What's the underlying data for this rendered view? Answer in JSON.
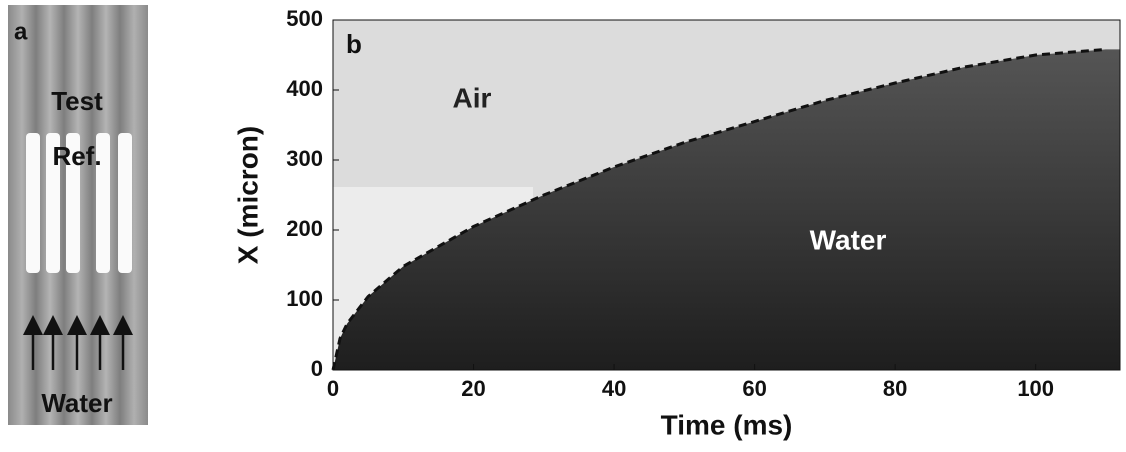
{
  "panel_a": {
    "label": "a",
    "texts": [
      "Test",
      "Ref.",
      "Water"
    ]
  },
  "chart_data": {
    "type": "line",
    "panel_label": "b",
    "x_label": "Time (ms)",
    "y_label": "X (micron)",
    "annotations": [
      "Air",
      "Water"
    ],
    "x": [
      0,
      1,
      2,
      5,
      10,
      20,
      30,
      40,
      50,
      60,
      70,
      80,
      90,
      100,
      110
    ],
    "series": [
      {
        "color": "#111111",
        "values": [
          0,
          45,
          66,
          105,
          148,
          205,
          250,
          290,
          325,
          355,
          385,
          410,
          433,
          450,
          458
        ]
      }
    ],
    "xlim": [
      0,
      112
    ],
    "ylim": [
      0,
      500
    ],
    "xticks": [
      0,
      20,
      40,
      60,
      80,
      100
    ],
    "yticks": [
      0,
      100,
      200,
      300,
      400,
      500
    ],
    "line_style": "dashed"
  }
}
